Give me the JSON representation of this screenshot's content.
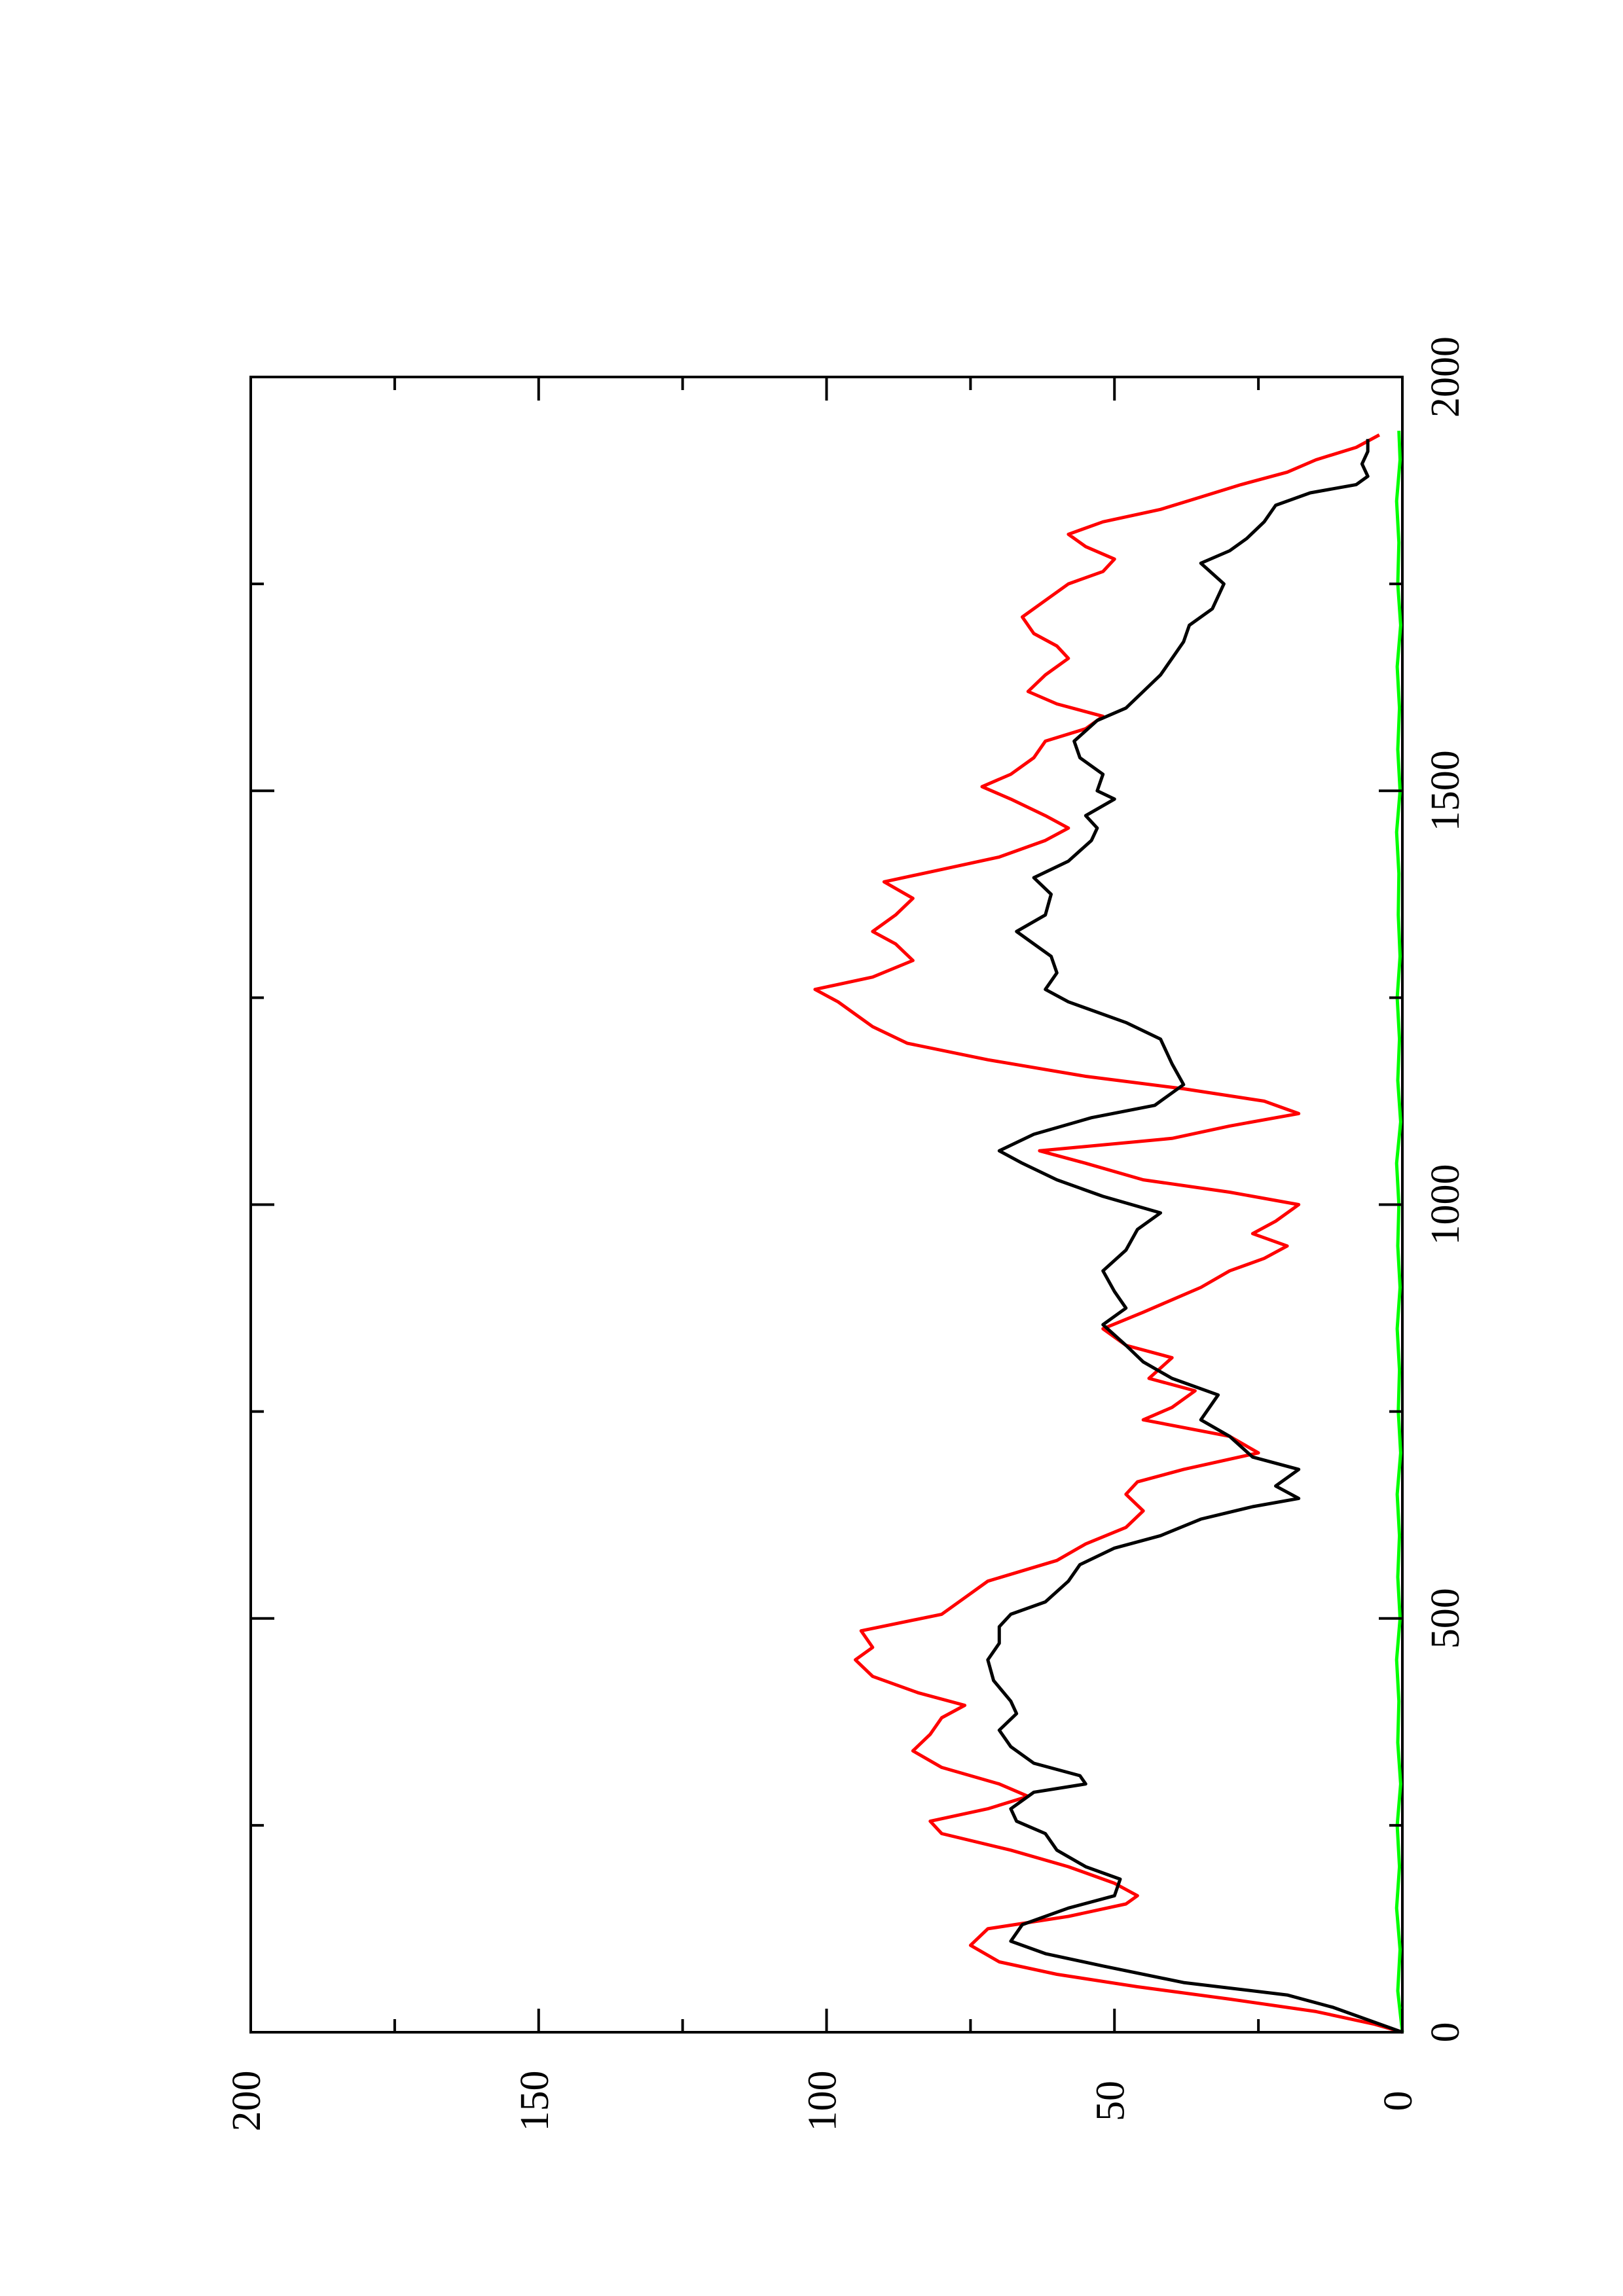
{
  "chart_data": {
    "type": "line",
    "title": "",
    "xlabel": "",
    "ylabel": "",
    "orientation": "rotated-90-ccw",
    "xlim": [
      0,
      2000
    ],
    "ylim": [
      0,
      200
    ],
    "x_ticks": [
      0,
      500,
      1000,
      1500,
      2000
    ],
    "x_tick_labels": [
      "0",
      "500",
      "1000",
      "1500",
      "2000"
    ],
    "x_minor_ticks": [
      250,
      750,
      1250,
      1750
    ],
    "y_ticks": [
      0,
      50,
      100,
      150,
      200
    ],
    "y_tick_labels": [
      "0",
      "50",
      "100",
      "150",
      "200"
    ],
    "y_minor_ticks": [
      25,
      75,
      125,
      175
    ],
    "grid": false,
    "legend": "none",
    "series": [
      {
        "color": "#000000",
        "points": [
          [
            0,
            0
          ],
          [
            10,
            4
          ],
          [
            30,
            12
          ],
          [
            45,
            20
          ],
          [
            60,
            38
          ],
          [
            80,
            52
          ],
          [
            95,
            62
          ],
          [
            110,
            68
          ],
          [
            130,
            66
          ],
          [
            150,
            58
          ],
          [
            165,
            50
          ],
          [
            185,
            49
          ],
          [
            200,
            55
          ],
          [
            220,
            60
          ],
          [
            240,
            62
          ],
          [
            255,
            67
          ],
          [
            270,
            68
          ],
          [
            290,
            64
          ],
          [
            300,
            55
          ],
          [
            310,
            56
          ],
          [
            325,
            64
          ],
          [
            345,
            68
          ],
          [
            365,
            70
          ],
          [
            385,
            67
          ],
          [
            400,
            68
          ],
          [
            425,
            71
          ],
          [
            450,
            72
          ],
          [
            470,
            70
          ],
          [
            490,
            70
          ],
          [
            505,
            68
          ],
          [
            520,
            62
          ],
          [
            545,
            58
          ],
          [
            565,
            56
          ],
          [
            585,
            50
          ],
          [
            600,
            42
          ],
          [
            620,
            35
          ],
          [
            635,
            26
          ],
          [
            645,
            18
          ],
          [
            660,
            22
          ],
          [
            680,
            18
          ],
          [
            695,
            26
          ],
          [
            720,
            30
          ],
          [
            740,
            35
          ],
          [
            770,
            32
          ],
          [
            790,
            40
          ],
          [
            810,
            45
          ],
          [
            830,
            48
          ],
          [
            855,
            52
          ],
          [
            875,
            48
          ],
          [
            895,
            50
          ],
          [
            920,
            52
          ],
          [
            945,
            48
          ],
          [
            970,
            46
          ],
          [
            990,
            42
          ],
          [
            1010,
            52
          ],
          [
            1030,
            60
          ],
          [
            1050,
            66
          ],
          [
            1065,
            70
          ],
          [
            1085,
            64
          ],
          [
            1105,
            54
          ],
          [
            1120,
            43
          ],
          [
            1145,
            38
          ],
          [
            1170,
            40
          ],
          [
            1200,
            42
          ],
          [
            1220,
            48
          ],
          [
            1245,
            58
          ],
          [
            1260,
            62
          ],
          [
            1280,
            60
          ],
          [
            1300,
            61
          ],
          [
            1315,
            64
          ],
          [
            1330,
            67
          ],
          [
            1350,
            62
          ],
          [
            1375,
            61
          ],
          [
            1395,
            64
          ],
          [
            1415,
            58
          ],
          [
            1440,
            54
          ],
          [
            1455,
            53
          ],
          [
            1470,
            55
          ],
          [
            1490,
            50
          ],
          [
            1500,
            53
          ],
          [
            1520,
            52
          ],
          [
            1540,
            56
          ],
          [
            1560,
            57
          ],
          [
            1585,
            53
          ],
          [
            1600,
            48
          ],
          [
            1620,
            45
          ],
          [
            1640,
            42
          ],
          [
            1660,
            40
          ],
          [
            1680,
            38
          ],
          [
            1700,
            37
          ],
          [
            1720,
            33
          ],
          [
            1750,
            31
          ],
          [
            1775,
            35
          ],
          [
            1790,
            30
          ],
          [
            1805,
            27
          ],
          [
            1825,
            24
          ],
          [
            1845,
            22
          ],
          [
            1860,
            16
          ],
          [
            1870,
            8
          ],
          [
            1880,
            6
          ],
          [
            1895,
            7
          ],
          [
            1910,
            6
          ],
          [
            1925,
            6
          ]
        ]
      },
      {
        "color": "#ff0000",
        "points": [
          [
            0,
            0
          ],
          [
            10,
            5
          ],
          [
            25,
            15
          ],
          [
            40,
            30
          ],
          [
            55,
            46
          ],
          [
            70,
            60
          ],
          [
            85,
            70
          ],
          [
            105,
            75
          ],
          [
            125,
            72
          ],
          [
            140,
            58
          ],
          [
            155,
            48
          ],
          [
            165,
            46
          ],
          [
            180,
            50
          ],
          [
            200,
            58
          ],
          [
            220,
            68
          ],
          [
            240,
            80
          ],
          [
            255,
            82
          ],
          [
            270,
            72
          ],
          [
            285,
            65
          ],
          [
            300,
            70
          ],
          [
            320,
            80
          ],
          [
            340,
            85
          ],
          [
            360,
            82
          ],
          [
            380,
            80
          ],
          [
            395,
            76
          ],
          [
            410,
            84
          ],
          [
            430,
            92
          ],
          [
            450,
            95
          ],
          [
            465,
            92
          ],
          [
            485,
            94
          ],
          [
            505,
            80
          ],
          [
            525,
            76
          ],
          [
            545,
            72
          ],
          [
            570,
            60
          ],
          [
            590,
            55
          ],
          [
            610,
            48
          ],
          [
            630,
            45
          ],
          [
            650,
            48
          ],
          [
            665,
            46
          ],
          [
            680,
            38
          ],
          [
            700,
            25
          ],
          [
            720,
            30
          ],
          [
            740,
            45
          ],
          [
            755,
            40
          ],
          [
            775,
            36
          ],
          [
            790,
            44
          ],
          [
            815,
            40
          ],
          [
            830,
            48
          ],
          [
            850,
            52
          ],
          [
            870,
            45
          ],
          [
            885,
            40
          ],
          [
            900,
            35
          ],
          [
            920,
            30
          ],
          [
            935,
            24
          ],
          [
            950,
            20
          ],
          [
            965,
            26
          ],
          [
            980,
            22
          ],
          [
            1000,
            18
          ],
          [
            1015,
            30
          ],
          [
            1030,
            45
          ],
          [
            1050,
            55
          ],
          [
            1065,
            63
          ],
          [
            1080,
            40
          ],
          [
            1095,
            30
          ],
          [
            1110,
            18
          ],
          [
            1125,
            24
          ],
          [
            1140,
            38
          ],
          [
            1155,
            55
          ],
          [
            1175,
            72
          ],
          [
            1195,
            86
          ],
          [
            1215,
            92
          ],
          [
            1230,
            95
          ],
          [
            1245,
            98
          ],
          [
            1260,
            102
          ],
          [
            1275,
            92
          ],
          [
            1295,
            85
          ],
          [
            1315,
            88
          ],
          [
            1330,
            92
          ],
          [
            1350,
            88
          ],
          [
            1370,
            85
          ],
          [
            1390,
            90
          ],
          [
            1405,
            80
          ],
          [
            1420,
            70
          ],
          [
            1440,
            62
          ],
          [
            1455,
            58
          ],
          [
            1470,
            62
          ],
          [
            1490,
            68
          ],
          [
            1505,
            73
          ],
          [
            1520,
            68
          ],
          [
            1540,
            64
          ],
          [
            1560,
            62
          ],
          [
            1575,
            55
          ],
          [
            1590,
            52
          ],
          [
            1605,
            60
          ],
          [
            1620,
            65
          ],
          [
            1640,
            62
          ],
          [
            1660,
            58
          ],
          [
            1675,
            60
          ],
          [
            1690,
            64
          ],
          [
            1710,
            66
          ],
          [
            1730,
            62
          ],
          [
            1750,
            58
          ],
          [
            1765,
            52
          ],
          [
            1780,
            50
          ],
          [
            1795,
            55
          ],
          [
            1810,
            58
          ],
          [
            1825,
            52
          ],
          [
            1840,
            42
          ],
          [
            1855,
            35
          ],
          [
            1870,
            28
          ],
          [
            1885,
            20
          ],
          [
            1900,
            15
          ],
          [
            1915,
            8
          ],
          [
            1930,
            4
          ]
        ]
      },
      {
        "color": "#00ff00",
        "points": [
          [
            0,
            0
          ],
          [
            50,
            0.8
          ],
          [
            100,
            0.4
          ],
          [
            150,
            1.0
          ],
          [
            200,
            0.5
          ],
          [
            250,
            0.9
          ],
          [
            300,
            0.3
          ],
          [
            350,
            0.8
          ],
          [
            400,
            0.6
          ],
          [
            450,
            1.0
          ],
          [
            500,
            0.4
          ],
          [
            550,
            0.8
          ],
          [
            600,
            0.5
          ],
          [
            650,
            0.9
          ],
          [
            700,
            0.3
          ],
          [
            750,
            0.7
          ],
          [
            800,
            0.5
          ],
          [
            850,
            0.9
          ],
          [
            900,
            0.4
          ],
          [
            950,
            0.8
          ],
          [
            1000,
            0.6
          ],
          [
            1050,
            1.0
          ],
          [
            1100,
            0.3
          ],
          [
            1150,
            0.8
          ],
          [
            1200,
            0.5
          ],
          [
            1250,
            0.9
          ],
          [
            1300,
            0.4
          ],
          [
            1350,
            0.7
          ],
          [
            1400,
            0.6
          ],
          [
            1450,
            1.0
          ],
          [
            1500,
            0.4
          ],
          [
            1550,
            0.8
          ],
          [
            1600,
            0.5
          ],
          [
            1650,
            0.9
          ],
          [
            1700,
            0.3
          ],
          [
            1750,
            0.8
          ],
          [
            1800,
            0.6
          ],
          [
            1850,
            1.0
          ],
          [
            1900,
            0.4
          ],
          [
            1935,
            0.6
          ]
        ]
      }
    ]
  }
}
